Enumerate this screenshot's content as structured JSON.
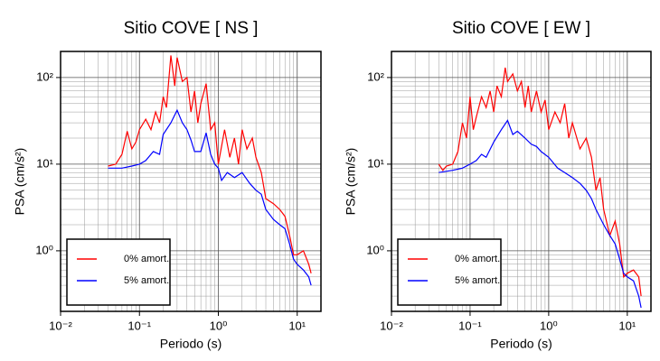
{
  "chart_data": [
    {
      "type": "line",
      "title": "Sitio COVE [ NS ]",
      "x_label": "Periodo (s)",
      "y_label": "PSA (cm/s²)",
      "log_x": true,
      "log_y": true,
      "grid": true,
      "legend": "lower left",
      "xlim": [
        0.01,
        20
      ],
      "ylim": [
        0.2,
        200
      ],
      "xticks": [
        {
          "value": 0.01,
          "label": "10⁻²"
        },
        {
          "value": 0.1,
          "label": "10⁻¹"
        },
        {
          "value": 1,
          "label": "10⁰"
        },
        {
          "value": 10,
          "label": "10¹"
        }
      ],
      "yticks": [
        {
          "value": 1,
          "label": "10⁰"
        },
        {
          "value": 10,
          "label": "10¹"
        },
        {
          "value": 100,
          "label": "10²"
        }
      ],
      "series": [
        {
          "name": "0% amort.",
          "color": "#ff0000",
          "x": [
            0.04,
            0.05,
            0.06,
            0.07,
            0.08,
            0.09,
            0.1,
            0.12,
            0.14,
            0.16,
            0.18,
            0.2,
            0.22,
            0.25,
            0.28,
            0.3,
            0.35,
            0.4,
            0.45,
            0.5,
            0.55,
            0.6,
            0.7,
            0.8,
            0.9,
            1.0,
            1.2,
            1.4,
            1.6,
            1.8,
            2.0,
            2.3,
            2.7,
            3,
            3.5,
            4,
            5,
            6,
            7,
            8,
            9,
            10,
            12,
            14,
            15
          ],
          "values": [
            9.5,
            10,
            13,
            24,
            15,
            18,
            25,
            33,
            25,
            40,
            30,
            60,
            45,
            180,
            80,
            170,
            90,
            100,
            40,
            70,
            30,
            50,
            85,
            25,
            30,
            10,
            25,
            12,
            20,
            10,
            25,
            15,
            20,
            12,
            8,
            4,
            3.5,
            3,
            2.5,
            1.5,
            0.9,
            0.9,
            1,
            0.7,
            0.55
          ]
        },
        {
          "name": "5% amort.",
          "color": "#0000ff",
          "x": [
            0.04,
            0.06,
            0.08,
            0.1,
            0.12,
            0.15,
            0.18,
            0.2,
            0.25,
            0.3,
            0.35,
            0.4,
            0.45,
            0.5,
            0.6,
            0.7,
            0.8,
            0.9,
            1.0,
            1.1,
            1.3,
            1.6,
            2,
            2.5,
            3,
            3.5,
            4,
            5,
            6,
            7,
            8,
            9,
            10,
            12,
            14,
            15
          ],
          "values": [
            9,
            9,
            9.5,
            10,
            11,
            14,
            13,
            22,
            30,
            42,
            30,
            25,
            19,
            14,
            14,
            23,
            13,
            10,
            9,
            6.5,
            8,
            7,
            8,
            6,
            5,
            4.5,
            3,
            2.3,
            2,
            1.8,
            1.2,
            0.8,
            0.7,
            0.6,
            0.5,
            0.4
          ]
        }
      ]
    },
    {
      "type": "line",
      "title": "Sitio COVE [ EW ]",
      "x_label": "Periodo (s)",
      "y_label": "PSA (cm/s²)",
      "log_x": true,
      "log_y": true,
      "grid": true,
      "legend": "lower left",
      "xlim": [
        0.01,
        20
      ],
      "ylim": [
        0.2,
        200
      ],
      "xticks": [
        {
          "value": 0.01,
          "label": "10⁻²"
        },
        {
          "value": 0.1,
          "label": "10⁻¹"
        },
        {
          "value": 1,
          "label": "10⁰"
        },
        {
          "value": 10,
          "label": "10¹"
        }
      ],
      "yticks": [
        {
          "value": 1,
          "label": "10⁰"
        },
        {
          "value": 10,
          "label": "10¹"
        },
        {
          "value": 100,
          "label": "10²"
        }
      ],
      "series": [
        {
          "name": "0% amort.",
          "color": "#ff0000",
          "x": [
            0.04,
            0.045,
            0.05,
            0.06,
            0.07,
            0.08,
            0.09,
            0.1,
            0.11,
            0.12,
            0.14,
            0.16,
            0.18,
            0.2,
            0.22,
            0.25,
            0.28,
            0.3,
            0.35,
            0.4,
            0.45,
            0.5,
            0.55,
            0.6,
            0.7,
            0.8,
            0.9,
            1.0,
            1.2,
            1.4,
            1.6,
            1.8,
            2,
            2.5,
            3,
            3.5,
            4,
            4.5,
            5,
            6,
            7,
            8,
            9,
            10,
            12,
            14,
            15
          ],
          "values": [
            10,
            8.5,
            9.5,
            10,
            14,
            30,
            20,
            60,
            25,
            35,
            60,
            45,
            70,
            40,
            80,
            60,
            130,
            90,
            110,
            70,
            90,
            45,
            80,
            40,
            70,
            40,
            55,
            25,
            40,
            30,
            50,
            20,
            30,
            15,
            20,
            12,
            5,
            7,
            3,
            1.5,
            2.2,
            1.2,
            0.5,
            0.55,
            0.6,
            0.5,
            0.3
          ]
        },
        {
          "name": "5% amort.",
          "color": "#0000ff",
          "x": [
            0.04,
            0.06,
            0.08,
            0.1,
            0.12,
            0.14,
            0.16,
            0.2,
            0.25,
            0.3,
            0.35,
            0.4,
            0.5,
            0.6,
            0.7,
            0.8,
            1.0,
            1.3,
            1.6,
            2,
            2.5,
            3,
            3.5,
            4,
            5,
            6,
            7,
            8,
            9,
            10,
            12,
            14,
            15
          ],
          "values": [
            8,
            8.5,
            9,
            10,
            11,
            13,
            12,
            18,
            25,
            32,
            22,
            24,
            20,
            17,
            16,
            14,
            12,
            9,
            8,
            7,
            6,
            5,
            4,
            3,
            2,
            1.5,
            1.2,
            0.8,
            0.55,
            0.5,
            0.45,
            0.3,
            0.22
          ]
        }
      ]
    }
  ]
}
